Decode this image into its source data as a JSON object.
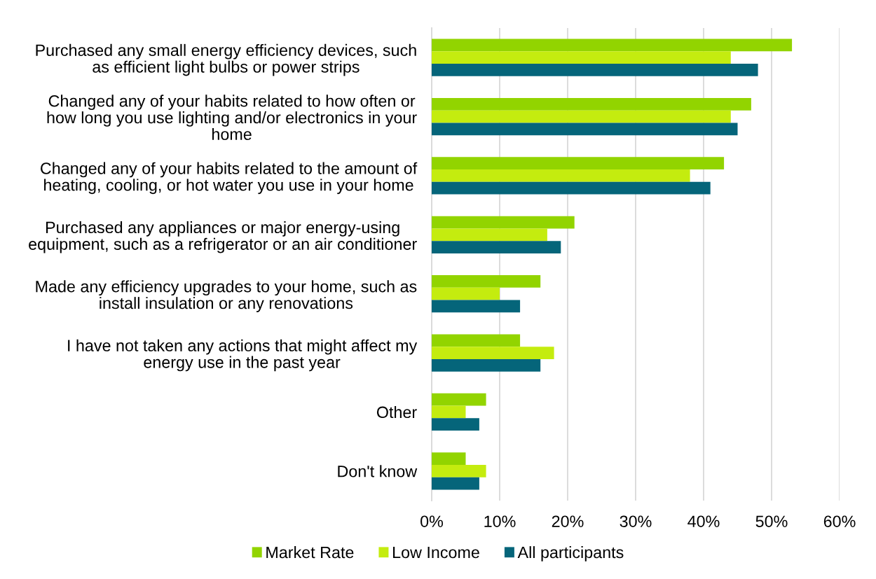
{
  "chart_data": {
    "type": "bar",
    "orientation": "horizontal",
    "categories": [
      "Purchased any small energy efficiency devices, such\nas efficient light bulbs or power strips",
      "Changed any of your habits related to how often or\nhow long you use lighting and/or electronics in your\nhome",
      "Changed any of your habits related to the amount of\nheating, cooling, or hot water you use in your home",
      "Purchased any appliances or major energy-using\nequipment, such as a refrigerator or an air conditioner",
      "Made any efficiency upgrades to your home, such as\ninstall insulation or any renovations",
      "I have not taken any actions that might affect my\nenergy use in the past year",
      "Other",
      "Don't know"
    ],
    "series": [
      {
        "name": "Market Rate",
        "color": "#92d400",
        "values": [
          53,
          47,
          43,
          21,
          16,
          13,
          8,
          5
        ]
      },
      {
        "name": "Low Income",
        "color": "#c4ec0f",
        "values": [
          44,
          44,
          38,
          17,
          10,
          18,
          5,
          8
        ]
      },
      {
        "name": "All participants",
        "color": "#05657a",
        "values": [
          48,
          45,
          41,
          19,
          13,
          16,
          7,
          7
        ]
      }
    ],
    "xlim": [
      0,
      60
    ],
    "xticks": [
      {
        "value": 0,
        "label": "0%"
      },
      {
        "value": 10,
        "label": "10%"
      },
      {
        "value": 20,
        "label": "20%"
      },
      {
        "value": 30,
        "label": "30%"
      },
      {
        "value": 40,
        "label": "40%"
      },
      {
        "value": 50,
        "label": "50%"
      },
      {
        "value": 60,
        "label": "60%"
      }
    ],
    "grid": "x",
    "legend": "bottom"
  }
}
